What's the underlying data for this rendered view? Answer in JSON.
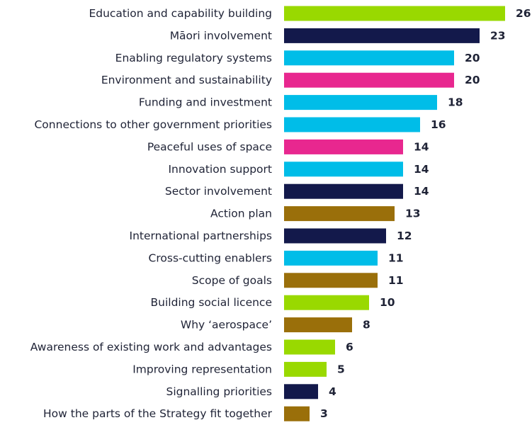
{
  "chart_data": {
    "type": "bar",
    "orientation": "horizontal",
    "categories": [
      "Education and capability building",
      "Māori involvement",
      "Enabling regulatory systems",
      "Environment and sustainability",
      "Funding and investment",
      "Connections to other government priorities",
      "Peaceful uses of space",
      "Innovation support",
      "Sector involvement",
      "Action plan",
      "International partnerships",
      "Cross-cutting enablers",
      "Scope of goals",
      "Building social licence",
      "Why ‘aerospace’",
      "Awareness of existing work and advantages",
      "Improving representation",
      "Signalling priorities",
      "How the parts of the Strategy fit together"
    ],
    "values": [
      26,
      23,
      20,
      20,
      18,
      16,
      14,
      14,
      14,
      13,
      12,
      11,
      11,
      10,
      8,
      6,
      5,
      4,
      3
    ],
    "bar_colors": [
      "#99d900",
      "#13194b",
      "#00bde8",
      "#e8278f",
      "#00bde8",
      "#00bde8",
      "#e8278f",
      "#00bde8",
      "#13194b",
      "#9a6f0a",
      "#13194b",
      "#00bde8",
      "#9a6f0a",
      "#99d900",
      "#9a6f0a",
      "#99d900",
      "#99d900",
      "#13194b",
      "#9a6f0a"
    ],
    "xlim": [
      0,
      26
    ],
    "grid": false,
    "legend": "none",
    "title": "",
    "xlabel": "",
    "ylabel": ""
  }
}
